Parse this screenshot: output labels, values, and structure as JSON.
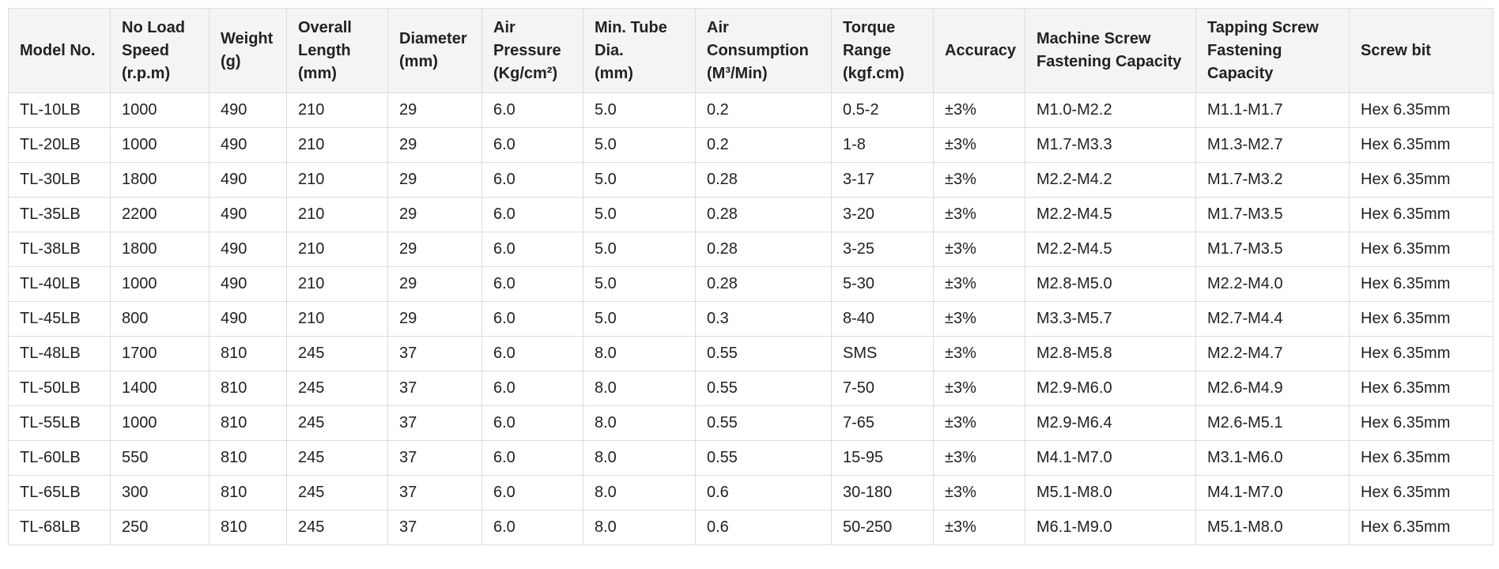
{
  "table": {
    "headers": [
      "Model No.",
      "No Load\nSpeed\n(r.p.m)",
      "Weight\n(g)",
      "Overall\nLength\n(mm)",
      "Diameter\n(mm)",
      "Air\nPressure\n(Kg/cm²)",
      "Min. Tube\nDia.\n(mm)",
      "Air\nConsumption\n(M³/Min)",
      "Torque\nRange\n(kgf.cm)",
      "Accuracy",
      "Machine Screw\nFastening Capacity",
      "Tapping Screw\nFastening\nCapacity",
      "Screw bit"
    ],
    "rows": [
      [
        "TL-10LB",
        "1000",
        "490",
        "210",
        "29",
        "6.0",
        "5.0",
        "0.2",
        "0.5-2",
        "±3%",
        "M1.0-M2.2",
        "M1.1-M1.7",
        "Hex 6.35mm"
      ],
      [
        "TL-20LB",
        "1000",
        "490",
        "210",
        "29",
        "6.0",
        "5.0",
        "0.2",
        "1-8",
        "±3%",
        "M1.7-M3.3",
        "M1.3-M2.7",
        "Hex 6.35mm"
      ],
      [
        "TL-30LB",
        "1800",
        "490",
        "210",
        "29",
        "6.0",
        "5.0",
        "0.28",
        "3-17",
        "±3%",
        "M2.2-M4.2",
        "M1.7-M3.2",
        "Hex 6.35mm"
      ],
      [
        "TL-35LB",
        "2200",
        "490",
        "210",
        "29",
        "6.0",
        "5.0",
        "0.28",
        "3-20",
        "±3%",
        "M2.2-M4.5",
        "M1.7-M3.5",
        "Hex 6.35mm"
      ],
      [
        "TL-38LB",
        "1800",
        "490",
        "210",
        "29",
        "6.0",
        "5.0",
        "0.28",
        "3-25",
        "±3%",
        "M2.2-M4.5",
        "M1.7-M3.5",
        "Hex 6.35mm"
      ],
      [
        "TL-40LB",
        "1000",
        "490",
        "210",
        "29",
        "6.0",
        "5.0",
        "0.28",
        "5-30",
        "±3%",
        "M2.8-M5.0",
        "M2.2-M4.0",
        "Hex 6.35mm"
      ],
      [
        "TL-45LB",
        "800",
        "490",
        "210",
        "29",
        "6.0",
        "5.0",
        "0.3",
        "8-40",
        "±3%",
        "M3.3-M5.7",
        "M2.7-M4.4",
        "Hex 6.35mm"
      ],
      [
        "TL-48LB",
        "1700",
        "810",
        "245",
        "37",
        "6.0",
        "8.0",
        "0.55",
        "SMS",
        "±3%",
        "M2.8-M5.8",
        "M2.2-M4.7",
        "Hex 6.35mm"
      ],
      [
        "TL-50LB",
        "1400",
        "810",
        "245",
        "37",
        "6.0",
        "8.0",
        "0.55",
        "7-50",
        "±3%",
        "M2.9-M6.0",
        "M2.6-M4.9",
        "Hex 6.35mm"
      ],
      [
        "TL-55LB",
        "1000",
        "810",
        "245",
        "37",
        "6.0",
        "8.0",
        "0.55",
        "7-65",
        "±3%",
        "M2.9-M6.4",
        "M2.6-M5.1",
        "Hex 6.35mm"
      ],
      [
        "TL-60LB",
        "550",
        "810",
        "245",
        "37",
        "6.0",
        "8.0",
        "0.55",
        "15-95",
        "±3%",
        "M4.1-M7.0",
        "M3.1-M6.0",
        "Hex 6.35mm"
      ],
      [
        "TL-65LB",
        "300",
        "810",
        "245",
        "37",
        "6.0",
        "8.0",
        "0.6",
        "30-180",
        "±3%",
        "M5.1-M8.0",
        "M4.1-M7.0",
        "Hex 6.35mm"
      ],
      [
        "TL-68LB",
        "250",
        "810",
        "245",
        "37",
        "6.0",
        "8.0",
        "0.6",
        "50-250",
        "±3%",
        "M6.1-M9.0",
        "M5.1-M8.0",
        "Hex 6.35mm"
      ]
    ]
  }
}
